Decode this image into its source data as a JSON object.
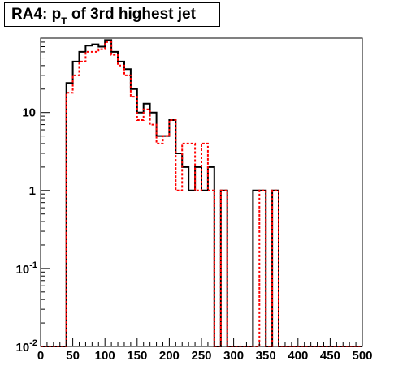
{
  "title": {
    "prefix": "RA4: p",
    "subscript": "T",
    "suffix": " of 3rd highest jet"
  },
  "colors": {
    "solid": "#000000",
    "dashed": "#ff0000"
  },
  "chart_data": {
    "type": "histogram",
    "yscale": "log",
    "xlim": [
      0,
      500
    ],
    "ylim": [
      0.01,
      90
    ],
    "bin_width": 10,
    "x_ticks": [
      0,
      50,
      100,
      150,
      200,
      250,
      300,
      350,
      400,
      450,
      500
    ],
    "y_ticks": [
      {
        "value": 0.01,
        "base": "10",
        "exp": "-2"
      },
      {
        "value": 0.1,
        "base": "10",
        "exp": "-1"
      },
      {
        "value": 1,
        "base": "1",
        "exp": ""
      },
      {
        "value": 10,
        "base": "10",
        "exp": ""
      }
    ],
    "series": [
      {
        "style": "solid",
        "color": "#000000",
        "bin_edges_start": 0,
        "values": [
          0.01,
          0.01,
          0.01,
          0.01,
          24,
          45,
          60,
          72,
          75,
          70,
          85,
          60,
          45,
          36,
          20,
          10,
          13,
          10,
          5,
          5,
          8,
          3,
          2,
          1,
          2,
          1,
          2,
          0.01,
          1,
          0.01,
          0.01,
          0.01,
          0.01,
          1,
          1,
          0.01,
          1,
          0.01,
          0.01,
          0.01,
          0.01,
          0.01,
          0.01,
          0.01,
          0.01,
          0.01,
          0.01,
          0.01,
          0.01,
          0.01
        ]
      },
      {
        "style": "dashed",
        "color": "#ff0000",
        "bin_edges_start": 0,
        "values": [
          0.01,
          0.01,
          0.01,
          0.01,
          18,
          30,
          45,
          60,
          60,
          65,
          80,
          55,
          40,
          30,
          16,
          8,
          11,
          7,
          4,
          5,
          8,
          1,
          4,
          4,
          1,
          4,
          1,
          0.01,
          1,
          0.01,
          0.01,
          0.01,
          0.01,
          0.01,
          1,
          0.01,
          1,
          0.01,
          0.01,
          0.01,
          0.01,
          0.01,
          0.01,
          0.01,
          0.01,
          0.01,
          0.01,
          0.01,
          0.01,
          0.01
        ]
      }
    ]
  }
}
